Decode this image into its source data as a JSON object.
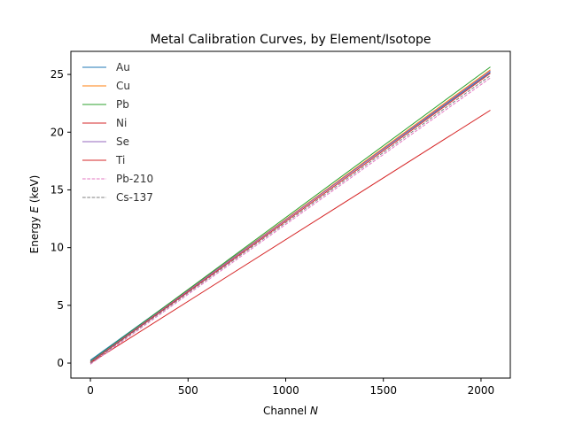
{
  "chart_data": {
    "type": "line",
    "title": "Metal Calibration Curves, by Element/Isotope",
    "xlabel_prefix": "Channel ",
    "xlabel_var": "N",
    "ylabel_prefix": "Energy ",
    "ylabel_var": "E",
    "ylabel_suffix": " (keV)",
    "xlim": [
      -100,
      2150
    ],
    "ylim": [
      -1.3,
      27
    ],
    "xticks": [
      0,
      500,
      1000,
      1500,
      2000
    ],
    "yticks": [
      0,
      5,
      10,
      15,
      20,
      25
    ],
    "legend_position": "upper-left",
    "series": [
      {
        "name": "Au",
        "color": "#1f77b4",
        "dash": "solid",
        "x": [
          0,
          2048
        ],
        "y": [
          0.25,
          25.2
        ]
      },
      {
        "name": "Cu",
        "color": "#ff7f0e",
        "dash": "solid",
        "x": [
          0,
          2048
        ],
        "y": [
          0.1,
          25.4
        ]
      },
      {
        "name": "Pb",
        "color": "#2ca02c",
        "dash": "solid",
        "x": [
          0,
          2048
        ],
        "y": [
          0.15,
          25.65
        ]
      },
      {
        "name": "Ni",
        "color": "#d62728",
        "dash": "solid",
        "x": [
          0,
          2048
        ],
        "y": [
          0.0,
          21.9
        ]
      },
      {
        "name": "Se",
        "color": "#9467bd",
        "dash": "solid",
        "x": [
          0,
          2048
        ],
        "y": [
          0.1,
          25.3
        ]
      },
      {
        "name": "Ti",
        "color": "#d62728",
        "dash": "solid",
        "x": [
          0,
          2048
        ],
        "y": [
          0.05,
          25.1
        ]
      },
      {
        "name": "Pb-210",
        "color": "#e377c2",
        "dash": "dashed",
        "x": [
          0,
          2048
        ],
        "y": [
          -0.1,
          24.7
        ]
      },
      {
        "name": "Cs-137",
        "color": "#7f7f7f",
        "dash": "dashed",
        "x": [
          0,
          2048
        ],
        "y": [
          0.0,
          24.9
        ]
      }
    ]
  }
}
